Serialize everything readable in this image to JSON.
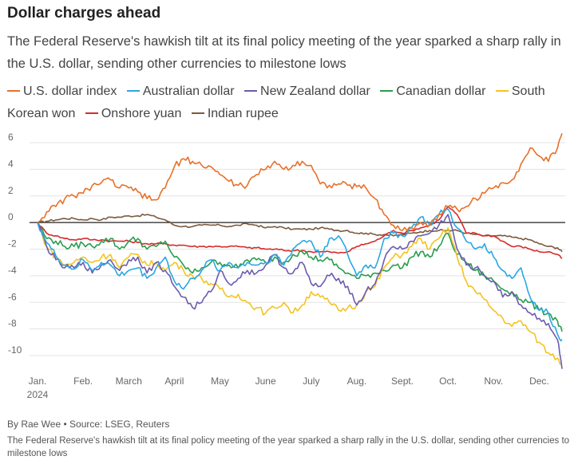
{
  "header": {
    "title": "Dollar charges ahead",
    "subtitle": "The Federal Reserve's hawkish tilt at its final policy meeting of the year sparked a sharp rally in the U.S. dollar, sending other currencies to milestone lows"
  },
  "footer": {
    "byline": "By Rae Wee • Source: LSEG, Reuters",
    "caption": "The Federal Reserve's hawkish tilt at its final policy meeting of the year sparked a sharp rally in the U.S. dollar, sending other currencies to milestone lows"
  },
  "chart_data": {
    "type": "line",
    "title": "Dollar charges ahead",
    "xlabel": "",
    "ylabel": "",
    "ylim": [
      -11,
      7
    ],
    "xlim": [
      1,
      12.6
    ],
    "yticks": [
      6,
      4,
      2,
      0,
      -2,
      -4,
      -6,
      -8,
      -10
    ],
    "ytick_labels": [
      "6",
      "4",
      "2",
      "0",
      "-2",
      "-4",
      "-6",
      "-8",
      "-10"
    ],
    "xticks": [
      {
        "label": "Jan.",
        "sublabel": "2024",
        "x": 1
      },
      {
        "label": "Feb.",
        "x": 2
      },
      {
        "label": "March",
        "x": 3
      },
      {
        "label": "April",
        "x": 4
      },
      {
        "label": "May",
        "x": 5
      },
      {
        "label": "June",
        "x": 6
      },
      {
        "label": "July",
        "x": 7
      },
      {
        "label": "Aug.",
        "x": 8
      },
      {
        "label": "Sept.",
        "x": 9
      },
      {
        "label": "Oct.",
        "x": 10
      },
      {
        "label": "Nov.",
        "x": 11
      },
      {
        "label": "Dec.",
        "x": 12
      }
    ],
    "grid": "horizontal",
    "legend_position": "top",
    "series": [
      {
        "name": "U.S. dollar index",
        "color": "#e8702a",
        "x": [
          1.0,
          1.2,
          1.4,
          1.6,
          1.8,
          2.0,
          2.2,
          2.4,
          2.6,
          2.8,
          3.0,
          3.2,
          3.4,
          3.6,
          3.8,
          4.0,
          4.2,
          4.4,
          4.6,
          4.8,
          5.0,
          5.2,
          5.4,
          5.6,
          5.8,
          6.0,
          6.2,
          6.4,
          6.6,
          6.8,
          7.0,
          7.2,
          7.4,
          7.6,
          7.8,
          8.0,
          8.2,
          8.4,
          8.6,
          8.8,
          9.0,
          9.2,
          9.4,
          9.6,
          9.8,
          10.0,
          10.2,
          10.4,
          10.6,
          10.8,
          11.0,
          11.2,
          11.4,
          11.6,
          11.8,
          12.0,
          12.2,
          12.4,
          12.5
        ],
        "values": [
          0,
          0.8,
          1.2,
          1.8,
          2.0,
          2.2,
          2.8,
          3.0,
          3.2,
          2.6,
          2.6,
          2.3,
          1.8,
          1.7,
          2.6,
          4.2,
          4.8,
          4.6,
          4.3,
          4.2,
          3.6,
          3.1,
          2.8,
          2.8,
          3.6,
          4.0,
          4.6,
          4.0,
          4.3,
          4.6,
          4.3,
          2.9,
          2.8,
          2.9,
          2.8,
          2.7,
          2.6,
          1.8,
          0.6,
          -0.2,
          -0.6,
          -0.4,
          0,
          -0.2,
          0.6,
          1.2,
          1.0,
          1.2,
          1.8,
          2.2,
          2.6,
          3.0,
          3.2,
          4.4,
          5.6,
          5.0,
          4.6,
          5.6,
          6.7
        ]
      },
      {
        "name": "Australian dollar",
        "color": "#2aa7e1",
        "x": [
          1.0,
          1.2,
          1.4,
          1.6,
          1.8,
          2.0,
          2.2,
          2.4,
          2.6,
          2.8,
          3.0,
          3.2,
          3.4,
          3.6,
          3.8,
          4.0,
          4.2,
          4.4,
          4.6,
          4.8,
          5.0,
          5.2,
          5.4,
          5.6,
          5.8,
          6.0,
          6.2,
          6.4,
          6.6,
          6.8,
          7.0,
          7.2,
          7.4,
          7.6,
          7.8,
          8.0,
          8.2,
          8.4,
          8.6,
          8.8,
          9.0,
          9.2,
          9.4,
          9.6,
          9.8,
          10.0,
          10.2,
          10.4,
          10.6,
          10.8,
          11.0,
          11.2,
          11.4,
          11.6,
          11.8,
          12.0,
          12.2,
          12.4,
          12.5
        ],
        "values": [
          0,
          -1.5,
          -2.5,
          -3.2,
          -3.5,
          -2.8,
          -3.6,
          -3.0,
          -3.2,
          -4.0,
          -3.6,
          -3.4,
          -4.2,
          -3.4,
          -2.6,
          -4.4,
          -5.0,
          -4.2,
          -3.6,
          -2.8,
          -3.6,
          -3.0,
          -3.4,
          -3.0,
          -3.2,
          -3.0,
          -2.4,
          -3.2,
          -2.0,
          -1.4,
          -1.4,
          -2.6,
          -1.2,
          -1.0,
          -2.4,
          -4.0,
          -3.2,
          -3.4,
          -1.2,
          -0.8,
          -1.0,
          -0.4,
          0.4,
          -0.2,
          0.6,
          1.0,
          -0.4,
          -1.4,
          -2.0,
          -1.6,
          -2.6,
          -3.6,
          -4.2,
          -3.4,
          -5.6,
          -6.6,
          -6.8,
          -8.4,
          -8.8
        ]
      },
      {
        "name": "New Zealand dollar",
        "color": "#6b5cae",
        "x": [
          1.0,
          1.2,
          1.4,
          1.6,
          1.8,
          2.0,
          2.2,
          2.4,
          2.6,
          2.8,
          3.0,
          3.2,
          3.4,
          3.6,
          3.8,
          4.0,
          4.2,
          4.4,
          4.6,
          4.8,
          5.0,
          5.2,
          5.4,
          5.6,
          5.8,
          6.0,
          6.2,
          6.4,
          6.6,
          6.8,
          7.0,
          7.2,
          7.4,
          7.6,
          7.8,
          8.0,
          8.2,
          8.4,
          8.6,
          8.8,
          9.0,
          9.2,
          9.4,
          9.6,
          9.8,
          10.0,
          10.2,
          10.4,
          10.6,
          10.8,
          11.0,
          11.2,
          11.4,
          11.6,
          11.8,
          12.0,
          12.2,
          12.4,
          12.5
        ],
        "values": [
          0,
          -1.8,
          -2.8,
          -3.4,
          -3.4,
          -3.0,
          -3.8,
          -3.2,
          -2.8,
          -3.6,
          -2.8,
          -2.6,
          -3.8,
          -3.0,
          -3.6,
          -4.8,
          -5.6,
          -6.4,
          -6.0,
          -5.2,
          -3.6,
          -4.6,
          -4.2,
          -3.6,
          -3.8,
          -3.2,
          -2.4,
          -3.4,
          -3.8,
          -3.0,
          -4.6,
          -4.8,
          -4.0,
          -4.2,
          -4.8,
          -6.2,
          -5.2,
          -4.6,
          -2.8,
          -1.8,
          -2.0,
          -1.4,
          -1.0,
          -0.8,
          -0.2,
          0.6,
          -2.0,
          -3.2,
          -3.4,
          -4.0,
          -4.4,
          -5.6,
          -5.2,
          -6.2,
          -6.8,
          -7.2,
          -7.6,
          -8.8,
          -11.0
        ]
      },
      {
        "name": "Canadian dollar",
        "color": "#2a9d4e",
        "x": [
          1.0,
          1.2,
          1.4,
          1.6,
          1.8,
          2.0,
          2.2,
          2.4,
          2.6,
          2.8,
          3.0,
          3.2,
          3.4,
          3.6,
          3.8,
          4.0,
          4.2,
          4.4,
          4.6,
          4.8,
          5.0,
          5.2,
          5.4,
          5.6,
          5.8,
          6.0,
          6.2,
          6.4,
          6.6,
          6.8,
          7.0,
          7.2,
          7.4,
          7.6,
          7.8,
          8.0,
          8.2,
          8.4,
          8.6,
          8.8,
          9.0,
          9.2,
          9.4,
          9.6,
          9.8,
          10.0,
          10.2,
          10.4,
          10.6,
          10.8,
          11.0,
          11.2,
          11.4,
          11.6,
          11.8,
          12.0,
          12.2,
          12.4,
          12.5
        ],
        "values": [
          0,
          -1.2,
          -1.4,
          -1.8,
          -1.8,
          -1.6,
          -1.8,
          -1.4,
          -1.2,
          -2.0,
          -1.4,
          -1.2,
          -2.0,
          -1.8,
          -1.4,
          -2.6,
          -3.2,
          -3.8,
          -3.4,
          -3.0,
          -3.0,
          -3.2,
          -3.4,
          -2.8,
          -2.8,
          -3.0,
          -2.6,
          -3.0,
          -2.4,
          -2.2,
          -2.6,
          -2.8,
          -2.8,
          -3.4,
          -3.8,
          -4.2,
          -4.0,
          -3.8,
          -3.6,
          -3.2,
          -3.4,
          -2.6,
          -2.2,
          -2.6,
          -1.8,
          -0.8,
          -2.4,
          -3.0,
          -3.6,
          -4.0,
          -4.4,
          -5.0,
          -5.2,
          -5.8,
          -6.0,
          -6.6,
          -6.8,
          -7.4,
          -8.2
        ]
      },
      {
        "name": "South Korean won",
        "color": "#f4c320",
        "x": [
          1.0,
          1.2,
          1.4,
          1.6,
          1.8,
          2.0,
          2.2,
          2.4,
          2.6,
          2.8,
          3.0,
          3.2,
          3.4,
          3.6,
          3.8,
          4.0,
          4.2,
          4.4,
          4.6,
          4.8,
          5.0,
          5.2,
          5.4,
          5.6,
          5.8,
          6.0,
          6.2,
          6.4,
          6.6,
          6.8,
          7.0,
          7.2,
          7.4,
          7.6,
          7.8,
          8.0,
          8.2,
          8.4,
          8.6,
          8.8,
          9.0,
          9.2,
          9.4,
          9.6,
          9.8,
          10.0,
          10.2,
          10.4,
          10.6,
          10.8,
          11.0,
          11.2,
          11.4,
          11.6,
          11.8,
          12.0,
          12.2,
          12.4,
          12.5
        ],
        "values": [
          0,
          -1.8,
          -2.6,
          -3.2,
          -3.0,
          -2.6,
          -3.0,
          -2.6,
          -2.4,
          -3.4,
          -2.6,
          -2.4,
          -3.2,
          -3.0,
          -3.6,
          -3.0,
          -3.6,
          -4.0,
          -4.2,
          -4.6,
          -5.0,
          -5.6,
          -5.4,
          -6.0,
          -6.4,
          -6.8,
          -6.4,
          -6.0,
          -6.8,
          -6.2,
          -5.2,
          -5.6,
          -6.0,
          -6.6,
          -6.4,
          -6.2,
          -5.2,
          -4.8,
          -3.4,
          -2.6,
          -2.4,
          -1.8,
          -1.2,
          -2.0,
          -1.2,
          -0.4,
          -2.6,
          -4.4,
          -5.2,
          -5.8,
          -6.6,
          -7.2,
          -7.8,
          -7.4,
          -8.2,
          -9.0,
          -9.8,
          -10.2,
          -10.6
        ]
      },
      {
        "name": "Onshore yuan",
        "color": "#d62b2b",
        "x": [
          1.0,
          1.2,
          1.4,
          1.6,
          1.8,
          2.0,
          2.2,
          2.4,
          2.6,
          2.8,
          3.0,
          3.2,
          3.4,
          3.6,
          3.8,
          4.0,
          4.2,
          4.4,
          4.6,
          4.8,
          5.0,
          5.2,
          5.4,
          5.6,
          5.8,
          6.0,
          6.2,
          6.4,
          6.6,
          6.8,
          7.0,
          7.2,
          7.4,
          7.6,
          7.8,
          8.0,
          8.2,
          8.4,
          8.6,
          8.8,
          9.0,
          9.2,
          9.4,
          9.6,
          9.8,
          10.0,
          10.2,
          10.4,
          10.6,
          10.8,
          11.0,
          11.2,
          11.4,
          11.6,
          11.8,
          12.0,
          12.2,
          12.4,
          12.5
        ],
        "values": [
          0,
          -0.8,
          -1.0,
          -1.2,
          -1.3,
          -1.2,
          -1.3,
          -1.3,
          -1.4,
          -1.4,
          -1.4,
          -1.5,
          -1.6,
          -1.6,
          -1.6,
          -1.7,
          -1.7,
          -1.8,
          -1.8,
          -1.8,
          -1.8,
          -1.8,
          -1.8,
          -1.9,
          -1.9,
          -2.0,
          -2.0,
          -2.1,
          -2.1,
          -2.1,
          -2.2,
          -2.2,
          -2.2,
          -2.3,
          -2.2,
          -1.8,
          -1.6,
          -1.4,
          -1.0,
          -0.6,
          -0.8,
          -0.6,
          -0.4,
          -0.2,
          0.2,
          1.2,
          0.6,
          -0.8,
          -0.8,
          -1.0,
          -1.0,
          -1.4,
          -1.8,
          -1.8,
          -2.0,
          -2.2,
          -2.2,
          -2.4,
          -2.7
        ]
      },
      {
        "name": "Indian rupee",
        "color": "#7a5a3e",
        "x": [
          1.0,
          1.2,
          1.4,
          1.6,
          1.8,
          2.0,
          2.2,
          2.4,
          2.6,
          2.8,
          3.0,
          3.2,
          3.4,
          3.6,
          3.8,
          4.0,
          4.2,
          4.4,
          4.6,
          4.8,
          5.0,
          5.2,
          5.4,
          5.6,
          5.8,
          6.0,
          6.2,
          6.4,
          6.6,
          6.8,
          7.0,
          7.2,
          7.4,
          7.6,
          7.8,
          8.0,
          8.2,
          8.4,
          8.6,
          8.8,
          9.0,
          9.2,
          9.4,
          9.6,
          9.8,
          10.0,
          10.2,
          10.4,
          10.6,
          10.8,
          11.0,
          11.2,
          11.4,
          11.6,
          11.8,
          12.0,
          12.2,
          12.4,
          12.5
        ],
        "values": [
          0,
          0.1,
          0.2,
          0.3,
          0.3,
          0.2,
          0.3,
          0.2,
          0.4,
          0.4,
          0.5,
          0.5,
          0.6,
          0.4,
          0.2,
          -0.2,
          -0.3,
          -0.3,
          -0.2,
          -0.2,
          -0.2,
          -0.3,
          -0.2,
          -0.1,
          -0.2,
          -0.4,
          -0.3,
          -0.4,
          -0.5,
          -0.5,
          -0.5,
          -0.4,
          -0.5,
          -0.6,
          -0.6,
          -0.8,
          -0.8,
          -0.9,
          -0.9,
          -1.0,
          -0.9,
          -0.8,
          -0.7,
          -0.6,
          -0.6,
          -0.6,
          -0.6,
          -0.8,
          -0.9,
          -1.0,
          -1.0,
          -1.0,
          -1.1,
          -1.2,
          -1.3,
          -1.6,
          -1.8,
          -1.9,
          -2.2
        ]
      }
    ]
  }
}
